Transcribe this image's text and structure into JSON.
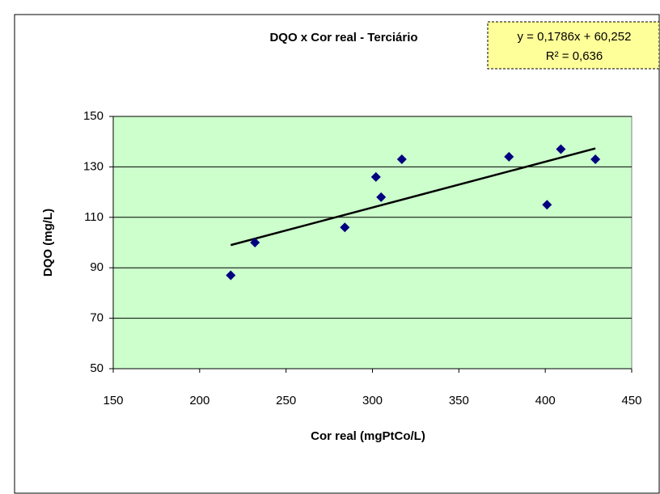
{
  "chart_data": {
    "type": "scatter",
    "title": "DQO x Cor real - Terciário",
    "annotations": [
      "y = 0,1786x + 60,252",
      "R² = 0,636"
    ],
    "x_label": "Cor real (mgPtCo/L)",
    "y_label": "DQO (mg/L)",
    "series": [
      {
        "name": "DQO",
        "color": "#000080",
        "x": [
          218,
          232,
          284,
          302,
          305,
          317,
          379,
          401,
          409,
          429
        ],
        "values": [
          87,
          100,
          106,
          126,
          118,
          133,
          134,
          115,
          137,
          133
        ]
      }
    ],
    "trendline": true,
    "xlim": [
      150,
      450
    ],
    "xticks": [
      150,
      200,
      250,
      300,
      350,
      400,
      450
    ],
    "ylim": [
      50,
      150
    ],
    "yticks": [
      50,
      70,
      90,
      110,
      130,
      150
    ],
    "grid": true
  }
}
